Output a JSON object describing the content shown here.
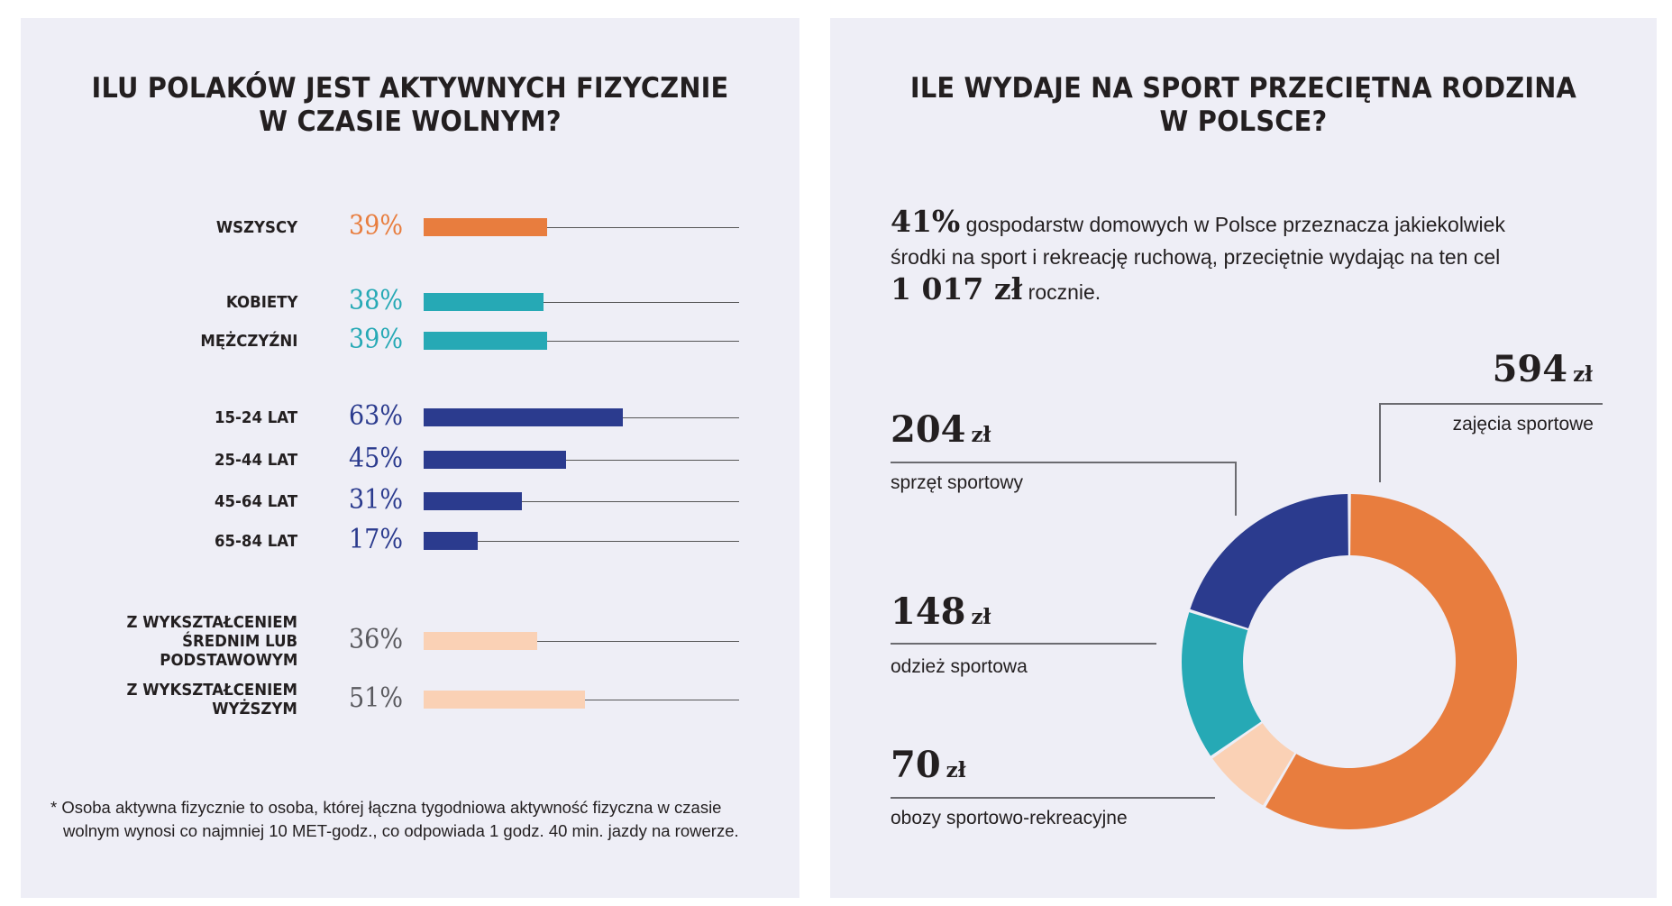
{
  "chart_data": [
    {
      "type": "bar",
      "orientation": "horizontal",
      "title": "ILU POLAKÓW JEST AKTYWNYCH FIZYCZNIE W CZASIE WOLNYM?",
      "title_lines": [
        "ILU POLAKÓW JEST AKTYWNYCH FIZYCZNIE",
        "W CZASIE WOLNYM?"
      ],
      "xlim": [
        0,
        100
      ],
      "unit": "%",
      "groups": [
        {
          "name": "total",
          "color": "#e87d3e",
          "value_color": "#e87d3e",
          "rows": [
            {
              "label_lines": [
                "WSZYSCY"
              ],
              "value": 39,
              "value_label": "39%"
            }
          ]
        },
        {
          "name": "sex",
          "color": "#26a9b5",
          "value_color": "#26a9b5",
          "rows": [
            {
              "label_lines": [
                "KOBIETY"
              ],
              "value": 38,
              "value_label": "38%"
            },
            {
              "label_lines": [
                "MĘŻCZYŹNI"
              ],
              "value": 39,
              "value_label": "39%"
            }
          ]
        },
        {
          "name": "age",
          "color": "#2b3b8e",
          "value_color": "#2b3b8e",
          "rows": [
            {
              "label_lines": [
                "15-24 LAT"
              ],
              "value": 63,
              "value_label": "63%"
            },
            {
              "label_lines": [
                "25-44 LAT"
              ],
              "value": 45,
              "value_label": "45%"
            },
            {
              "label_lines": [
                "45-64 LAT"
              ],
              "value": 31,
              "value_label": "31%"
            },
            {
              "label_lines": [
                "65-84 LAT"
              ],
              "value": 17,
              "value_label": "17%"
            }
          ]
        },
        {
          "name": "education",
          "color": "#fad1b5",
          "value_color": "#5a5a5f",
          "rows": [
            {
              "label_lines": [
                "Z WYKSZTAŁCENIEM",
                "ŚREDNIM LUB",
                "PODSTAWOWYM"
              ],
              "value": 36,
              "value_label": "36%"
            },
            {
              "label_lines": [
                "Z WYKSZTAŁCENIEM",
                "WYŻSZYM"
              ],
              "value": 51,
              "value_label": "51%"
            }
          ]
        }
      ],
      "footnote_lines": [
        "* Osoba aktywna fizycznie to osoba, której łączna tygodniowa aktywność fizyczna w czasie",
        "wolnym wynosi co najmniej 10 MET-godz., co odpowiada 1 godz. 40 min. jazdy na rowerze."
      ]
    },
    {
      "type": "pie",
      "variant": "donut",
      "title": "ILE WYDAJE NA SPORT PRZECIĘTNA RODZINA W POLSCE?",
      "title_lines": [
        "ILE WYDAJE NA SPORT PRZECIĘTNA RODZINA",
        "W POLSCE?"
      ],
      "intro": {
        "lead_value": "41%",
        "text1": " gospodarstw domowych w Polsce przeznacza jakiekolwiek",
        "text2": "środki na sport i rekreację ruchową, przeciętnie wydając na ten cel",
        "total_value": "1 017 zł",
        "text3": " rocznie."
      },
      "total": 1017,
      "unit": "zł",
      "slices": [
        {
          "label": "zajęcia sportowe",
          "value": 594,
          "amount": "594",
          "color": "#e87d3e"
        },
        {
          "label": "obozy sportowo-rekreacyjne",
          "value": 70,
          "amount": "70",
          "color": "#fad1b5"
        },
        {
          "label": "odzież sportowa",
          "value": 148,
          "amount": "148",
          "color": "#26a9b5"
        },
        {
          "label": "sprzęt sportowy",
          "value": 204,
          "amount": "204",
          "color": "#2b3b8e"
        }
      ],
      "unit_label": "zł"
    }
  ]
}
